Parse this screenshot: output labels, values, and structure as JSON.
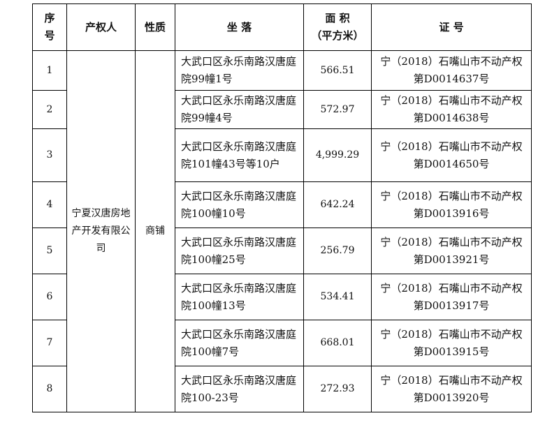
{
  "header": {
    "seq": "序号",
    "owner": "产权人",
    "nature": "性质",
    "location": "坐 落",
    "area": "面 积",
    "area_unit": "（平方米）",
    "cert": "证 号"
  },
  "owner": "宁夏汉唐房地产开发有限公司",
  "nature": "商铺",
  "rows": [
    {
      "seq": "1",
      "location": "大武口区永乐南路汉唐庭院99幢1号",
      "area": "566.51",
      "cert": "宁（2018）石嘴山市不动产权第D0014637号"
    },
    {
      "seq": "2",
      "location": "大武口区永乐南路汉唐庭院99幢4号",
      "area": "572.97",
      "cert": "宁（2018）石嘴山市不动产权第D0014638号"
    },
    {
      "seq": "3",
      "location": "大武口区永乐南路汉唐庭院101幢43号等10户",
      "area": "4,999.29",
      "cert": "宁（2018）石嘴山市不动产权第D0014650号"
    },
    {
      "seq": "4",
      "location": "大武口区永乐南路汉唐庭院100幢10号",
      "area": "642.24",
      "cert": "宁（2018）石嘴山市不动产权第D0013916号"
    },
    {
      "seq": "5",
      "location": "大武口区永乐南路汉唐庭院100幢25号",
      "area": "256.79",
      "cert": "宁（2018）石嘴山市不动产权第D0013921号"
    },
    {
      "seq": "6",
      "location": "大武口区永乐南路汉唐庭院100幢13号",
      "area": "534.41",
      "cert": "宁（2018）石嘴山市不动产权第D0013917号"
    },
    {
      "seq": "7",
      "location": "大武口区永乐南路汉唐庭院100幢7号",
      "area": "668.01",
      "cert": "宁（2018）石嘴山市不动产权第D0013915号"
    },
    {
      "seq": "8",
      "location": "大武口区永乐南路汉唐庭院100-23号",
      "area": "272.93",
      "cert": "宁（2018）石嘴山市不动产权第D0013920号"
    }
  ]
}
